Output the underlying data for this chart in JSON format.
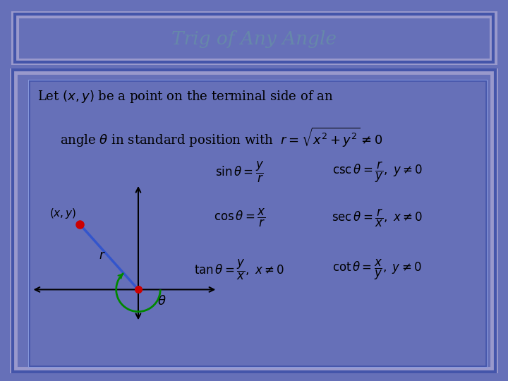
{
  "title": "Trig of Any Angle",
  "title_color": "#6688aa",
  "title_bg": "#a8b8a0",
  "main_bg": "#ffffcc",
  "outer_bg": "#6670b8",
  "border_color_dark": "#4455aa",
  "border_color_light": "#8899cc",
  "text_intro_line1": "Let $(x, y)$ be a point on the terminal side of an",
  "text_intro_line2": "angle $\\theta$ in standard position with  $r = \\sqrt{x^2 + y^2} \\neq 0$",
  "axis_color": "#000000",
  "line_color": "#3355cc",
  "point_color": "#cc0000",
  "angle_color": "#008800"
}
